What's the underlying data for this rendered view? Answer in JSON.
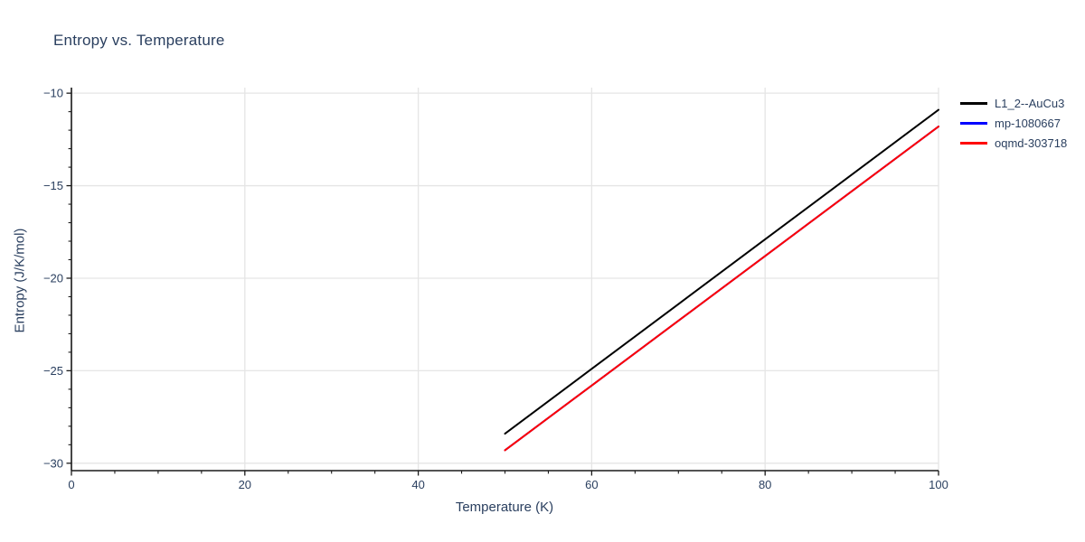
{
  "chart_data": {
    "type": "line",
    "title": "Entropy vs. Temperature",
    "xlabel": "Temperature (K)",
    "ylabel": "Entropy (J/K/mol)",
    "xlim": [
      0,
      100
    ],
    "ylim": [
      -30.4,
      -9.7
    ],
    "x_major_ticks": [
      0,
      20,
      40,
      60,
      80,
      100
    ],
    "x_minor_tick_step": 5,
    "y_major_ticks": [
      -30,
      -25,
      -20,
      -15,
      -10
    ],
    "y_minor_tick_step": 1,
    "grid": "major-both",
    "legend_position": "outside-top-right",
    "series": [
      {
        "name": "L1_2--AuCu3",
        "color": "#000000",
        "x": [
          50,
          60,
          70,
          80,
          90,
          100
        ],
        "y": [
          -28.4,
          -24.9,
          -21.4,
          -17.9,
          -14.4,
          -10.9
        ]
      },
      {
        "name": "mp-1080667",
        "color": "#0000ff",
        "x": [
          50,
          60,
          70,
          80,
          90,
          100
        ],
        "y": [
          -29.3,
          -25.8,
          -22.3,
          -18.8,
          -15.3,
          -11.8
        ],
        "note": "curve coincides with oqmd-303718 and is hidden beneath the red line"
      },
      {
        "name": "oqmd-303718",
        "color": "#ff0000",
        "x": [
          50,
          60,
          70,
          80,
          90,
          100
        ],
        "y": [
          -29.3,
          -25.8,
          -22.3,
          -18.8,
          -15.3,
          -11.8
        ]
      }
    ],
    "colors": {
      "text": "#2a3f5f",
      "grid": "#e5e5e5",
      "axis": "#1a1a1a"
    }
  }
}
